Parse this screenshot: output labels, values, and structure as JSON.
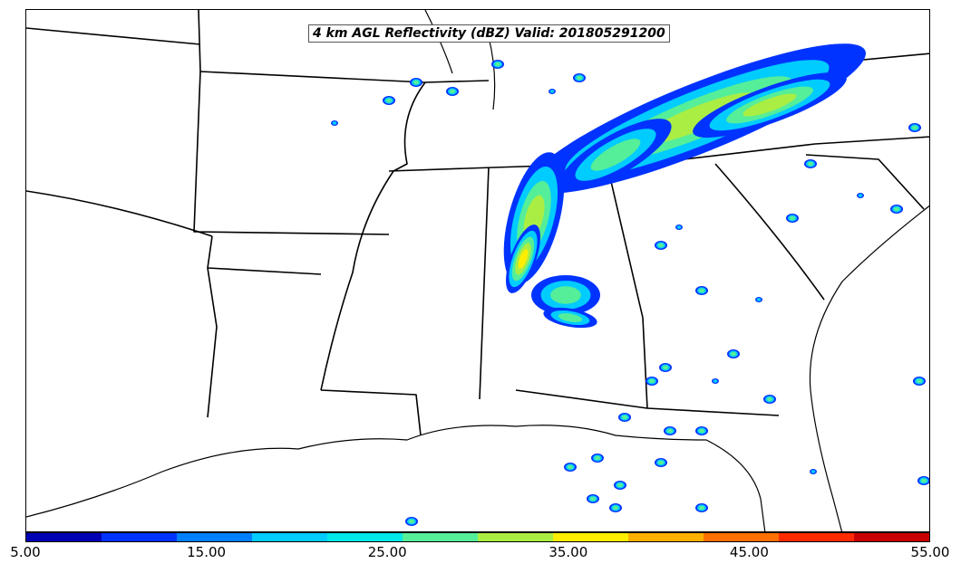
{
  "title": "4 km AGL Reflectivity (dBZ) Valid: 201805291200",
  "colorbar": {
    "colors": [
      "#0000b4",
      "#0033ff",
      "#0080ff",
      "#00ccff",
      "#00e8e8",
      "#55ee99",
      "#aaee44",
      "#ffee00",
      "#ffb000",
      "#ff7000",
      "#ff2a00",
      "#c80000"
    ],
    "ticks": [
      "5.00",
      "15.00",
      "25.00",
      "35.00",
      "45.00",
      "55.00"
    ]
  },
  "map": {
    "projection": "lambert-conformal",
    "region": "Southeastern United States",
    "field": "reflectivity",
    "units": "dBZ"
  }
}
